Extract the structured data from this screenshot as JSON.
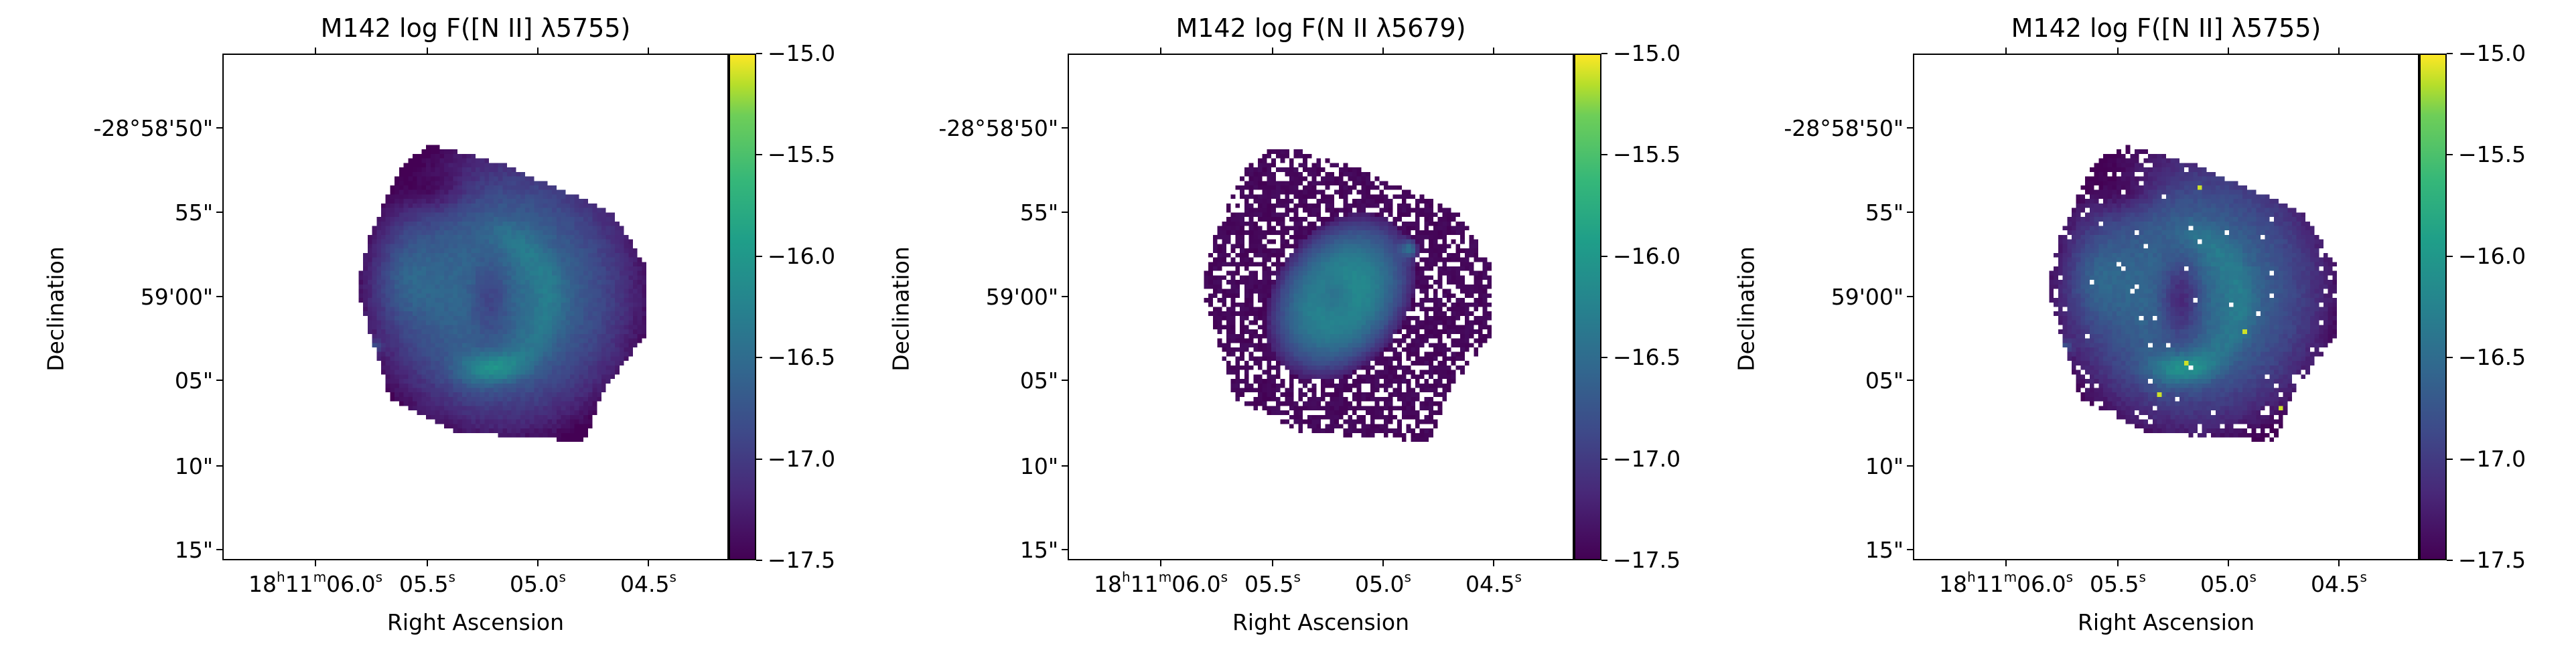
{
  "chart_data": [
    {
      "type": "heatmap",
      "title": "M142 log F([N II] λ5755)",
      "xlabel": "Right Ascension",
      "ylabel": "Declination",
      "colormap": "viridis",
      "colorbar": {
        "vmin": -17.5,
        "vmax": -15.0,
        "ticks": [
          "−15.0",
          "−15.5",
          "−16.0",
          "−16.5",
          "−17.0",
          "−17.5"
        ]
      },
      "xticks": [
        [
          {
            "t": "18"
          },
          {
            "s": "h"
          },
          {
            "t": "11"
          },
          {
            "s": "m"
          },
          {
            "t": "06.0"
          },
          {
            "s": "s"
          }
        ],
        [
          {
            "t": "05.5"
          },
          {
            "s": "s"
          }
        ],
        [
          {
            "t": "05.0"
          },
          {
            "s": "s"
          }
        ],
        [
          {
            "t": "04.5"
          },
          {
            "s": "s"
          }
        ]
      ],
      "yticks": [
        "-28°58'50\"",
        "55\"",
        "59'00\"",
        "05\"",
        "10\"",
        "15\""
      ],
      "variant": "full"
    },
    {
      "type": "heatmap",
      "title": "M142 log F(N II λ5679)",
      "xlabel": "Right Ascension",
      "ylabel": "Declination",
      "colormap": "viridis",
      "colorbar": {
        "vmin": -17.5,
        "vmax": -15.0,
        "ticks": [
          "−15.0",
          "−15.5",
          "−16.0",
          "−16.5",
          "−17.0",
          "−17.5"
        ]
      },
      "xticks": [
        [
          {
            "t": "18"
          },
          {
            "s": "h"
          },
          {
            "t": "11"
          },
          {
            "s": "m"
          },
          {
            "t": "06.0"
          },
          {
            "s": "s"
          }
        ],
        [
          {
            "t": "05.5"
          },
          {
            "s": "s"
          }
        ],
        [
          {
            "t": "05.0"
          },
          {
            "s": "s"
          }
        ],
        [
          {
            "t": "04.5"
          },
          {
            "s": "s"
          }
        ]
      ],
      "yticks": [
        "-28°58'50\"",
        "55\"",
        "59'00\"",
        "05\"",
        "10\"",
        "15\""
      ],
      "variant": "recomb"
    },
    {
      "type": "heatmap",
      "title": "M142 log F([N II] λ5755)",
      "xlabel": "Right Ascension",
      "ylabel": "Declination",
      "colormap": "viridis",
      "colorbar": {
        "vmin": -17.5,
        "vmax": -15.0,
        "ticks": [
          "−15.0",
          "−15.5",
          "−16.0",
          "−16.5",
          "−17.0",
          "−17.5"
        ]
      },
      "xticks": [
        [
          {
            "t": "18"
          },
          {
            "s": "h"
          },
          {
            "t": "11"
          },
          {
            "s": "m"
          },
          {
            "t": "06.0"
          },
          {
            "s": "s"
          }
        ],
        [
          {
            "t": "05.5"
          },
          {
            "s": "s"
          }
        ],
        [
          {
            "t": "05.0"
          },
          {
            "s": "s"
          }
        ],
        [
          {
            "t": "04.5"
          },
          {
            "s": "s"
          }
        ]
      ],
      "yticks": [
        "-28°58'50\"",
        "55\"",
        "59'00\"",
        "05\"",
        "10\"",
        "15\""
      ],
      "variant": "corrected"
    }
  ]
}
